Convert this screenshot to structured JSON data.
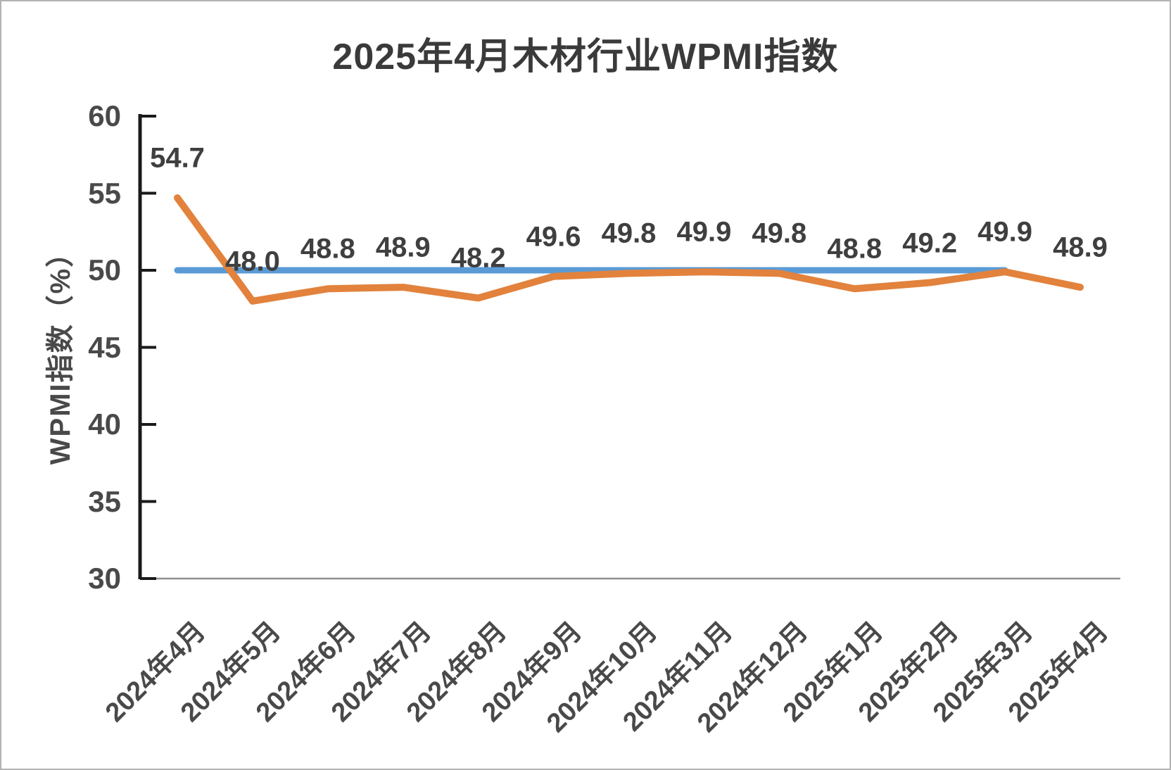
{
  "chart_data": {
    "type": "line",
    "title": "2025年4月木材行业WPMI指数",
    "xlabel": "",
    "ylabel": "WPMI指数（%）",
    "ylim": [
      30,
      60
    ],
    "yticks": [
      60,
      55,
      50,
      45,
      40,
      35,
      30
    ],
    "grid": false,
    "legend": "none",
    "categories": [
      "2024年4月",
      "2024年5月",
      "2024年6月",
      "2024年7月",
      "2024年8月",
      "2024年9月",
      "2024年10月",
      "2024年11月",
      "2024年12月",
      "2025年1月",
      "2025年2月",
      "2025年3月",
      "2025年4月"
    ],
    "series": [
      {
        "name": "WPMI指数",
        "values": [
          54.7,
          48.0,
          48.8,
          48.9,
          48.2,
          49.6,
          49.8,
          49.9,
          49.8,
          48.8,
          49.2,
          49.9,
          48.9
        ],
        "data_labels": [
          "54.7",
          "48.0",
          "48.8",
          "48.9",
          "48.2",
          "49.6",
          "49.8",
          "49.9",
          "49.8",
          "48.8",
          "49.2",
          "49.9",
          "48.9"
        ]
      }
    ],
    "reference_line": {
      "value": 50,
      "from_category": "2024年4月",
      "to_category": "2025年3月",
      "from_index": 0,
      "to_index": 11
    }
  },
  "colors": {
    "series_line": "#E2823C",
    "reference_line": "#5B9BD5",
    "title_text": "#3A3A3A",
    "axis_text": "#494949",
    "data_label_text": "#3F3F3F",
    "axis_line": "#1A1A1A",
    "baseline": "#8F8F8F",
    "frame_border": "#B3B3B3"
  }
}
